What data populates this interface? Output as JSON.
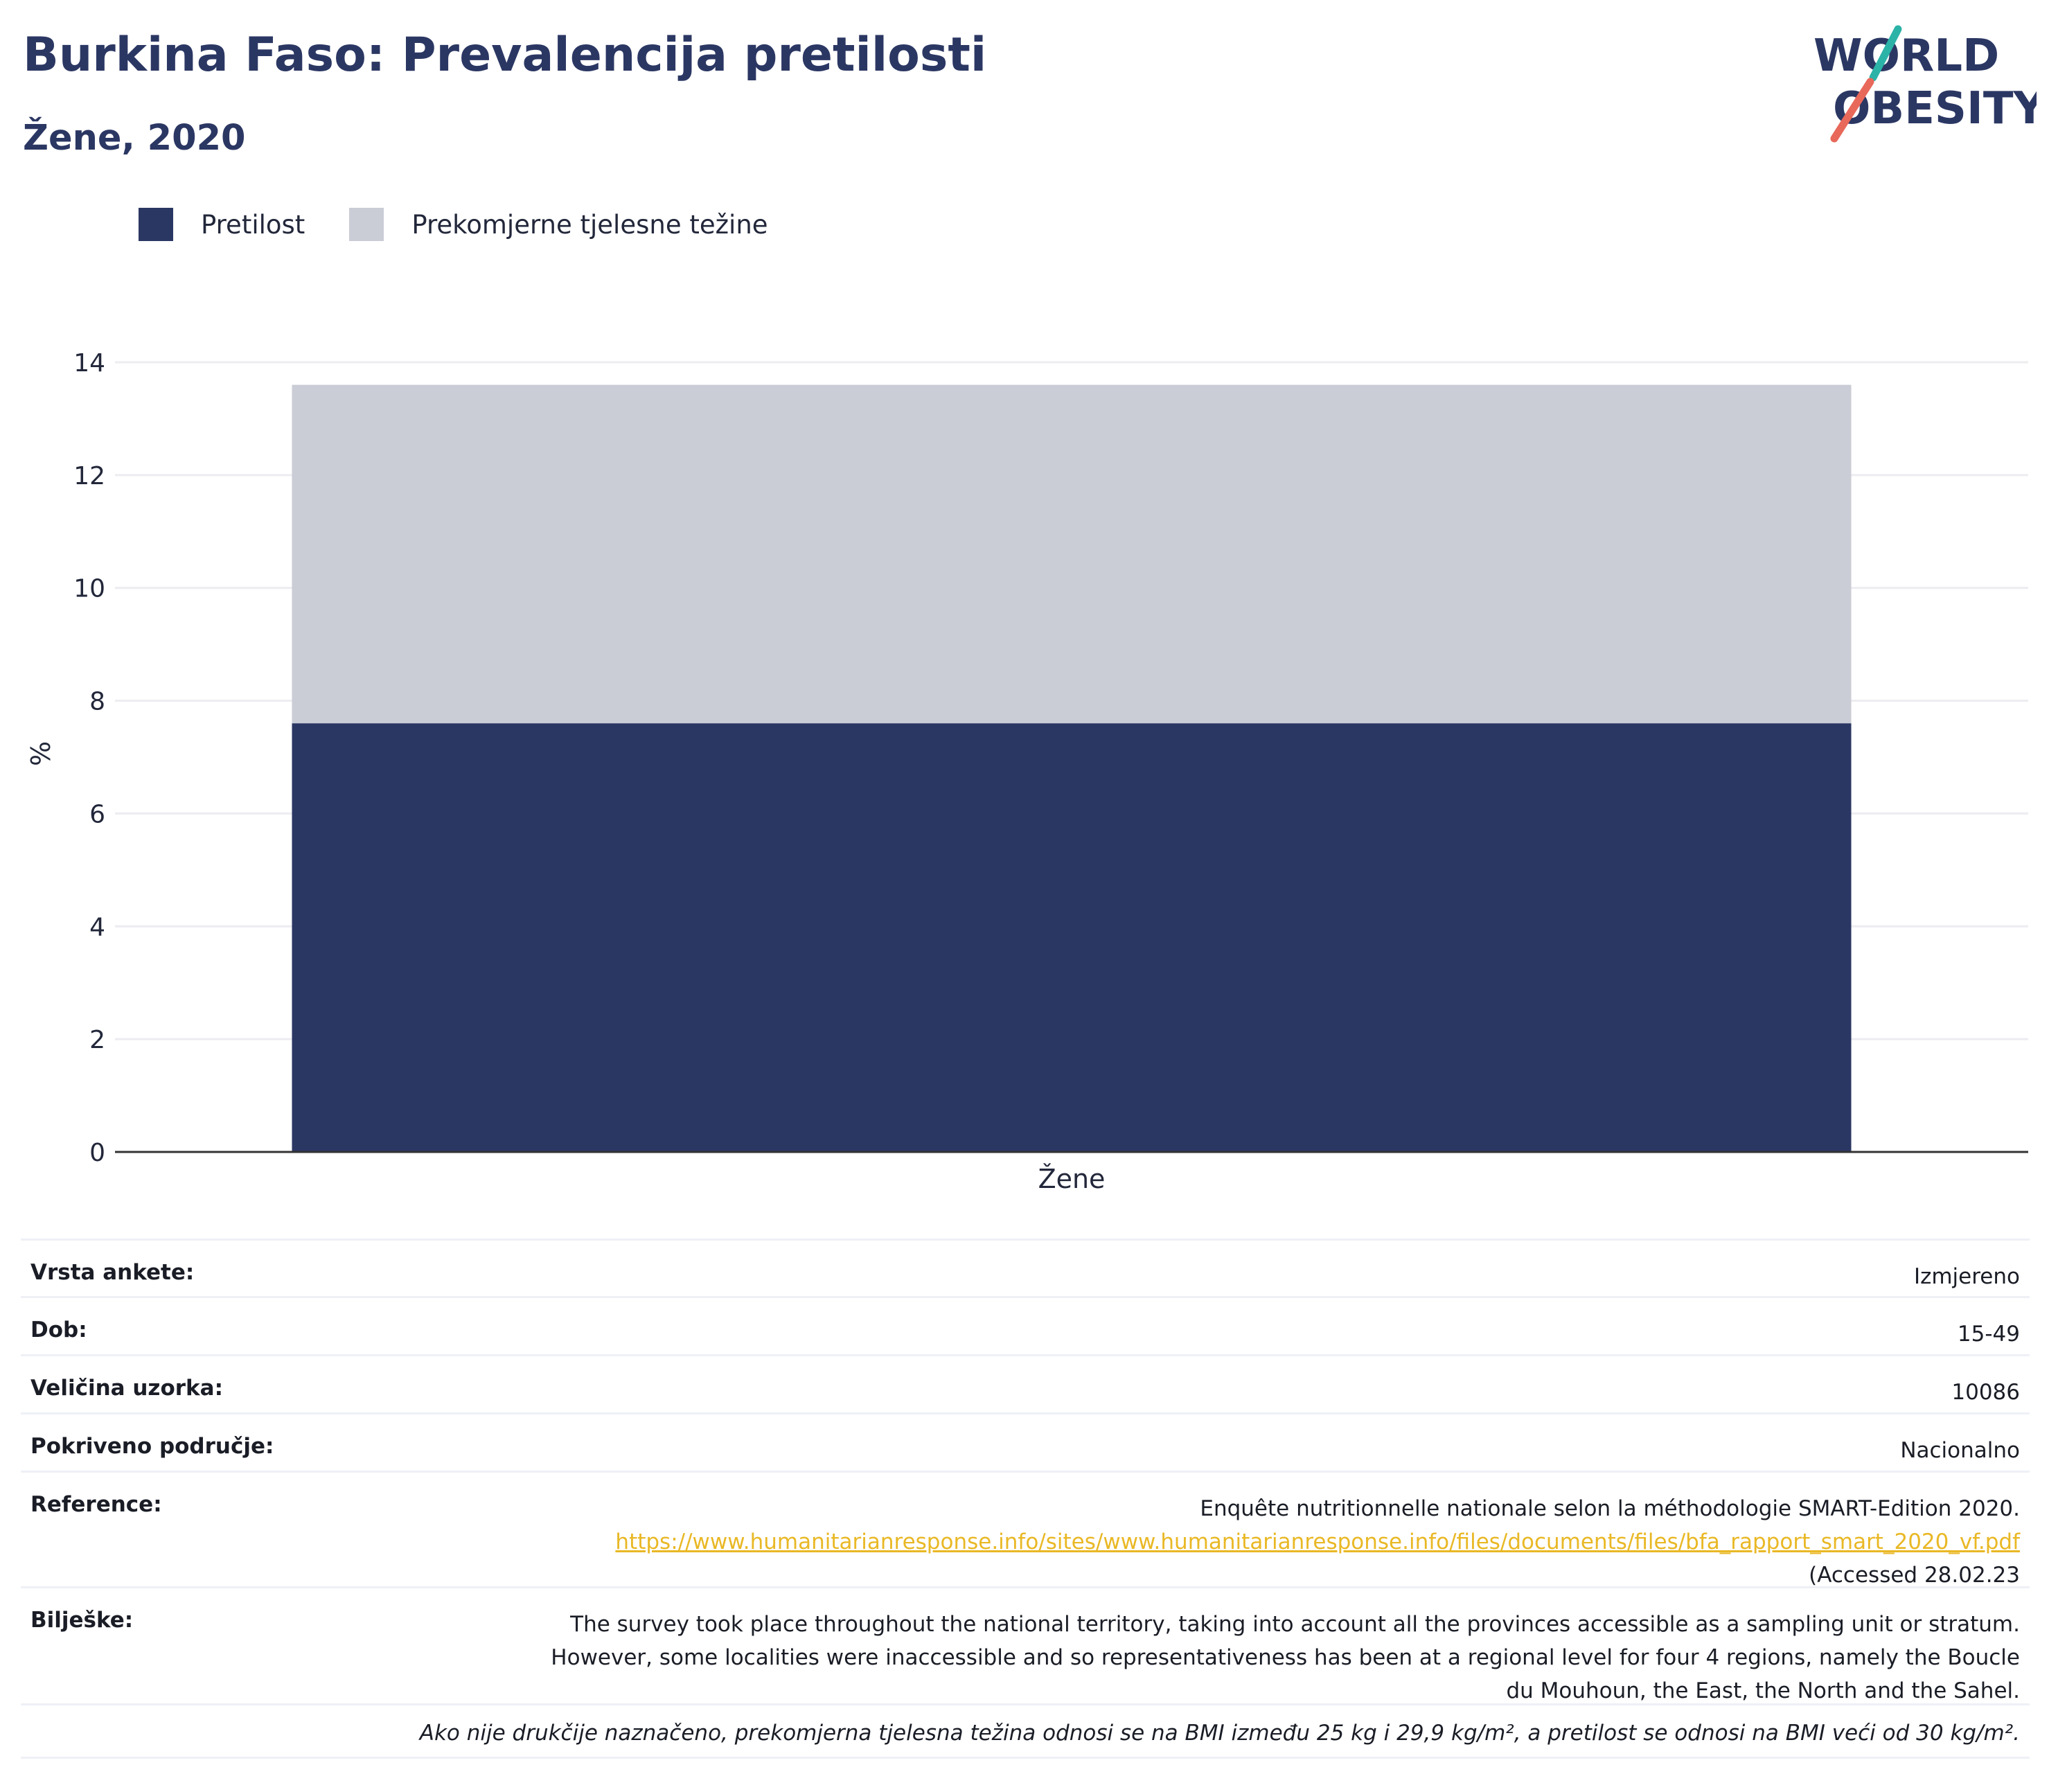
{
  "header": {
    "title": "Burkina Faso: Prevalencija pretilosti",
    "subtitle": "Žene, 2020"
  },
  "logo": {
    "line1": "WORLD",
    "line2": "OBESITY",
    "accent_teal": "#2bb3a8",
    "accent_coral": "#e8685a"
  },
  "legend": [
    {
      "label": "Pretilost",
      "color": "#2b3763"
    },
    {
      "label": "Prekomjerne tjelesne težine",
      "color": "#caccd6"
    }
  ],
  "chart_data": {
    "type": "bar",
    "stacked": true,
    "categories": [
      "Žene"
    ],
    "series": [
      {
        "name": "Pretilost",
        "values": [
          7.6
        ],
        "color": "#2b3763"
      },
      {
        "name": "Prekomjerne tjelesne težine",
        "values": [
          6.0
        ],
        "color": "#caccd6"
      }
    ],
    "ylabel": "%",
    "ylim": [
      0,
      14
    ],
    "yticks": [
      0,
      2,
      4,
      6,
      8,
      10,
      12,
      14
    ],
    "grid": true
  },
  "info": {
    "survey_type_label": "Vrsta ankete:",
    "survey_type_value": "Izmjereno",
    "age_label": "Dob:",
    "age_value": "15-49",
    "sample_label": "Veličina uzorka:",
    "sample_value": "10086",
    "area_label": "Pokriveno područje:",
    "area_value": "Nacionalno",
    "reference_label": "Reference:",
    "reference_line1": "Enquête nutritionnelle nationale selon la méthodologie SMART-Edition 2020.",
    "reference_link": "https://www.humanitarianresponse.info/sites/www.humanitarianresponse.info/files/documents/files/bfa_rapport_smart_2020_vf.pdf",
    "reference_line3": "(Accessed 28.02.23",
    "notes_label": "Bilješke:",
    "notes_line1": "The survey took place throughout the national territory, taking into account all the provinces accessible as a sampling unit or stratum.",
    "notes_line2": "However, some localities were inaccessible and so representativeness has been at a regional level for four 4 regions, namely the Boucle",
    "notes_line3": "du Mouhoun, the East, the North and the Sahel.",
    "footnote": "Ako nije drukčije naznačeno, prekomjerna tjelesna težina odnosi se na BMI između 25 kg i 29,9 kg/m², a pretilost se odnosi na BMI veći od 30 kg/m²."
  }
}
